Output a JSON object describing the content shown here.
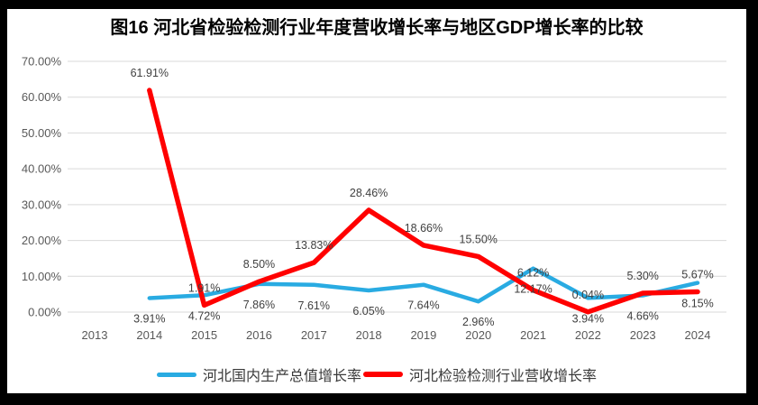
{
  "chart_data": {
    "type": "line",
    "title": "图16 河北省检验检测行业年度营收增长率与地区GDP增长率的比较",
    "categories": [
      "2013",
      "2014",
      "2015",
      "2016",
      "2017",
      "2018",
      "2019",
      "2020",
      "2021",
      "2022",
      "2023",
      "2024"
    ],
    "series": [
      {
        "name": "河北国内生产总值增长率",
        "color": "#29ABE2",
        "stroke_width": 4.5,
        "label_position": "below",
        "values": [
          null,
          3.91,
          4.72,
          7.86,
          7.61,
          6.05,
          7.64,
          2.96,
          12.17,
          3.94,
          4.66,
          8.15
        ]
      },
      {
        "name": "河北检验检测行业营收增长率",
        "color": "#FF0000",
        "stroke_width": 5.5,
        "label_position": "above",
        "values": [
          null,
          61.91,
          1.91,
          8.5,
          13.83,
          28.46,
          18.66,
          15.5,
          6.12,
          0.04,
          5.3,
          5.67
        ]
      }
    ],
    "y_axis": {
      "tick_labels": [
        "0.00%",
        "10.00%",
        "20.00%",
        "30.00%",
        "40.00%",
        "50.00%",
        "60.00%",
        "70.00%"
      ],
      "min": 0,
      "max": 70,
      "step": 10
    },
    "grid": "horizontal",
    "data_labels": true,
    "legend_position": "bottom"
  },
  "colors": {
    "frame": "#000000",
    "plot_background": "#FFFFFF",
    "gridline": "#D9D9D9",
    "axis_text": "#595959",
    "data_label_text": "#3F3F3F",
    "title_text": "#000000",
    "series_blue": "#29ABE2",
    "series_red": "#FF0000"
  }
}
